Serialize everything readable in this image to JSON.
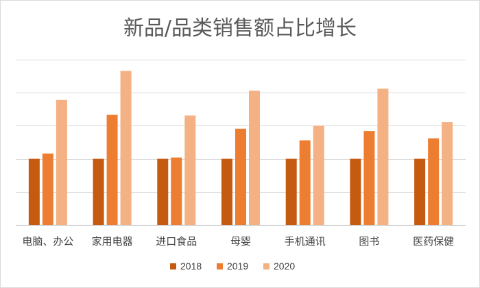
{
  "chart_data": {
    "type": "bar",
    "title": "新品/品类销售额占比增长",
    "categories": [
      "电脑、办公",
      "家用电器",
      "进口食品",
      "母婴",
      "手机通讯",
      "图书",
      "医药保健"
    ],
    "series": [
      {
        "name": "2018",
        "color": "#c55a11",
        "values": [
          2.0,
          2.0,
          2.0,
          2.0,
          2.0,
          2.0,
          2.0
        ]
      },
      {
        "name": "2019",
        "color": "#ed7d31",
        "values": [
          2.16,
          3.33,
          2.04,
          2.91,
          2.56,
          2.84,
          2.62
        ]
      },
      {
        "name": "2020",
        "color": "#f4b183",
        "values": [
          3.78,
          4.66,
          3.31,
          4.06,
          3.0,
          4.12,
          3.11
        ]
      }
    ],
    "ylim": [
      0,
      5
    ],
    "grid": true,
    "y_tick_labels_shown": false,
    "legend": "bottom"
  }
}
